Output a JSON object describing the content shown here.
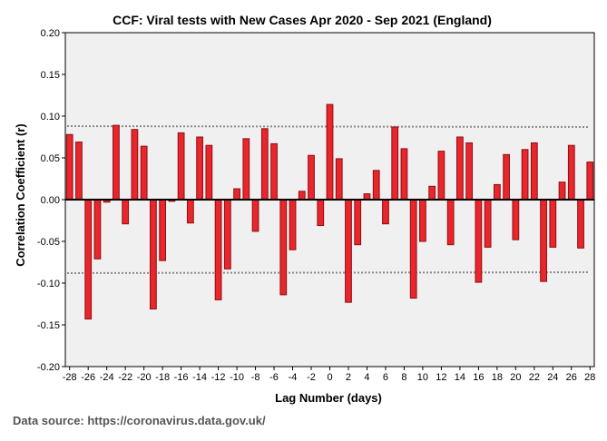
{
  "chart_data": {
    "type": "bar",
    "title": "CCF: Viral tests with New Cases Apr 2020 - Sep 2021 (England)",
    "xlabel": "Lag Number (days)",
    "ylabel": "Correlation Coefficient (r)",
    "ylim": [
      -0.2,
      0.2
    ],
    "yticks": [
      -0.2,
      -0.15,
      -0.1,
      -0.05,
      0.0,
      0.05,
      0.1,
      0.15,
      0.2
    ],
    "ytick_labels": [
      "-0.20",
      "-0.15",
      "-0.10",
      "-0.05",
      "0.00",
      "0.05",
      "0.10",
      "0.15",
      "0.20"
    ],
    "xticks": [
      -28,
      -26,
      -24,
      -22,
      -20,
      -18,
      -16,
      -14,
      -12,
      -10,
      -8,
      -6,
      -4,
      -2,
      0,
      2,
      4,
      6,
      8,
      10,
      12,
      14,
      16,
      18,
      20,
      22,
      24,
      26,
      28
    ],
    "lags": [
      -28,
      -27,
      -26,
      -25,
      -24,
      -23,
      -22,
      -21,
      -20,
      -19,
      -18,
      -17,
      -16,
      -15,
      -14,
      -13,
      -12,
      -11,
      -10,
      -9,
      -8,
      -7,
      -6,
      -5,
      -4,
      -3,
      -2,
      -1,
      0,
      1,
      2,
      3,
      4,
      5,
      6,
      7,
      8,
      9,
      10,
      11,
      12,
      13,
      14,
      15,
      16,
      17,
      18,
      19,
      20,
      21,
      22,
      23,
      24,
      25,
      26,
      27,
      28
    ],
    "values": [
      0.078,
      0.069,
      -0.143,
      -0.071,
      -0.003,
      0.089,
      -0.029,
      0.084,
      0.064,
      -0.131,
      -0.073,
      -0.002,
      0.08,
      -0.028,
      0.075,
      0.065,
      -0.12,
      -0.083,
      0.013,
      0.073,
      -0.038,
      0.085,
      0.067,
      -0.114,
      -0.06,
      0.01,
      0.053,
      -0.031,
      0.114,
      0.049,
      -0.123,
      -0.054,
      0.007,
      0.035,
      -0.029,
      0.087,
      0.061,
      -0.118,
      -0.05,
      0.016,
      0.058,
      -0.054,
      0.075,
      0.068,
      -0.099,
      -0.057,
      0.018,
      0.054,
      -0.048,
      0.06,
      0.068,
      -0.098,
      -0.057,
      0.021,
      0.065,
      -0.058,
      0.045
    ],
    "upper_confidence_limit": [
      0.088,
      0.087
    ],
    "lower_confidence_limit": [
      -0.088,
      -0.087
    ],
    "bar_color": "#e8262b",
    "bar_edge_color": "#8c0f12",
    "plot_background": "#f0f0f0",
    "confidence_line_color": "#8a8a8a"
  },
  "source_text": "Data source: https://coronavirus.data.gov.uk/"
}
